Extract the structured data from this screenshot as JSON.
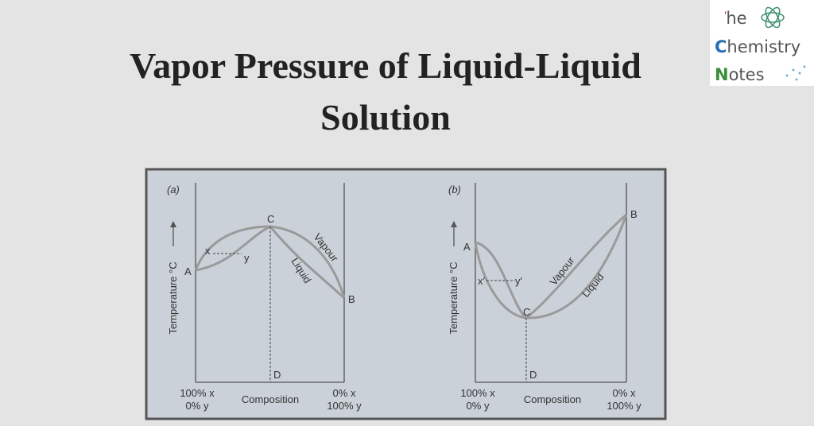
{
  "header": {
    "title_lines": [
      "Vapor Pressure of Liquid-Liquid",
      "Solution"
    ]
  },
  "logo": {
    "lines": [
      "The",
      "Chemistry",
      "Notes"
    ]
  },
  "panels": [
    {
      "label": "(a)",
      "y_axis": "Temperature °C",
      "points": [
        "A",
        "B",
        "C",
        "D"
      ],
      "tie": [
        "x",
        "y"
      ],
      "curves": [
        "Vapour",
        "Liquid"
      ],
      "x_left": [
        "100% x",
        "0% y"
      ],
      "x_axis": "Composition",
      "x_right": [
        "0% x",
        "100% y"
      ]
    },
    {
      "label": "(b)",
      "y_axis": "Temperature °C",
      "points": [
        "A",
        "B",
        "C",
        "D"
      ],
      "tie": [
        "x′",
        "y′"
      ],
      "curves": [
        "Vapour",
        "Liquid"
      ],
      "x_left": [
        "100% x",
        "0% y"
      ],
      "x_axis": "Composition",
      "x_right": [
        "0% x",
        "100% y"
      ]
    }
  ]
}
